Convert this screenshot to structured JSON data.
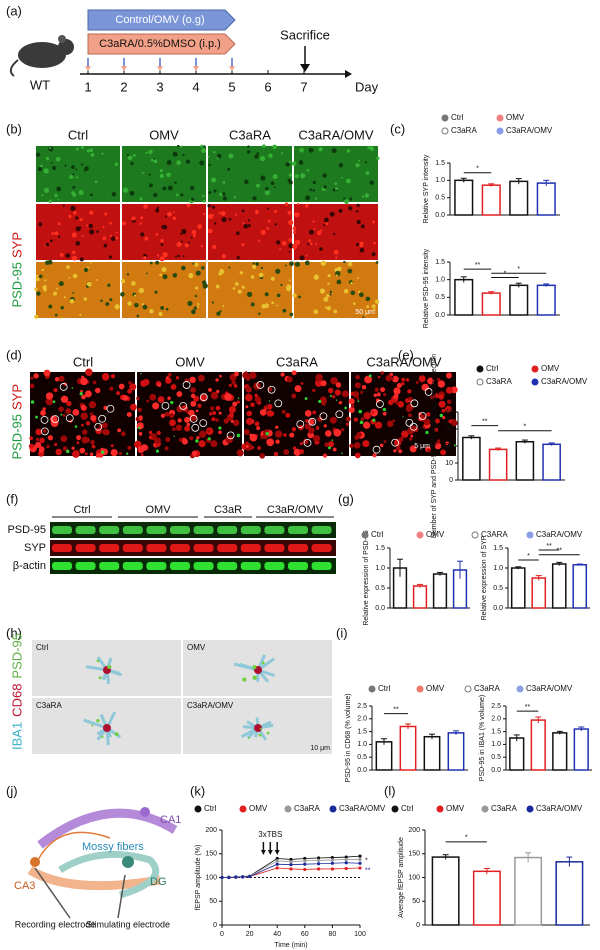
{
  "panels": {
    "a": "(a)",
    "b": "(b)",
    "c": "(c)",
    "d": "(d)",
    "e": "(e)",
    "f": "(f)",
    "g": "(g)",
    "h": "(h)",
    "i": "(i)",
    "j": "(j)",
    "k": "(k)",
    "l": "(l)"
  },
  "timeline": {
    "treatment_1": "Control/OMV (o.g)",
    "treatment_2": "C3aRA/0.5%DMSO (i.p.)",
    "sacrifice": "Sacrifice",
    "mouse": "WT",
    "days": [
      "1",
      "2",
      "3",
      "4",
      "5",
      "6",
      "7"
    ],
    "axis": "Day"
  },
  "panel_b": {
    "columns": [
      "Ctrl",
      "OMV",
      "C3aRA",
      "C3aRA/OMV"
    ],
    "row_label": [
      "PSD-95",
      "SYP"
    ],
    "scale": "50 μm"
  },
  "panel_d": {
    "columns": [
      "Ctrl",
      "OMV",
      "C3aRA",
      "C3aRA/OMV"
    ],
    "row_label": [
      "PSD-95",
      "SYP"
    ],
    "scale": "5 μm"
  },
  "panel_f": {
    "lanes": [
      "Ctrl",
      "OMV",
      "C3aR",
      "C3aR/OMV"
    ],
    "rows": [
      "PSD-95",
      "SYP",
      "β-actin"
    ]
  },
  "panel_h": {
    "cells": [
      "Ctrl",
      "OMV",
      "C3aRA",
      "C3aRA/OMV"
    ],
    "side_label": [
      "IBA1",
      "CD68",
      "PSD-95"
    ],
    "scale": "10 μm"
  },
  "panel_j": {
    "labels": [
      "CA1",
      "CA3",
      "DG",
      "Mossy fibers",
      "Recording electrode",
      "Stimulating electrode"
    ]
  },
  "chart_data": [
    {
      "type": "bar",
      "y_label": "Relative SYP intensity",
      "ylim": [
        0,
        1.5
      ],
      "yticks": [
        {
          "value": 0,
          "label": "0.0"
        },
        {
          "value": 0.5,
          "label": "0.5"
        },
        {
          "value": 1,
          "label": "1.0"
        },
        {
          "value": 1.5,
          "label": "1.5"
        }
      ],
      "annotations": [
        "*"
      ],
      "series": [
        {
          "name": "Ctrl",
          "color": "#111111",
          "dot_color": "#777777",
          "values": [
            1.0
          ],
          "errors": [
            0.06
          ]
        },
        {
          "name": "OMV",
          "color": "#e02020",
          "dot_color": "#f08080",
          "values": [
            0.86
          ],
          "errors": [
            0.04
          ]
        },
        {
          "name": "C3aRA",
          "color": "#111111",
          "dot_color": "#777777",
          "open": true,
          "values": [
            0.97
          ],
          "errors": [
            0.08
          ]
        },
        {
          "name": "C3aRA/OMV",
          "color": "#2030b0",
          "dot_color": "#8a9be8",
          "values": [
            0.92
          ],
          "errors": [
            0.08
          ]
        }
      ]
    },
    {
      "type": "bar",
      "y_label": "Relative PSD-95 intensity",
      "ylim": [
        0,
        1.5
      ],
      "yticks": [
        {
          "value": 0,
          "label": "0.0"
        },
        {
          "value": 0.5,
          "label": "0.5"
        },
        {
          "value": 1,
          "label": "1.0"
        },
        {
          "value": 1.5,
          "label": "1.5"
        }
      ],
      "annotations": [
        "**",
        "*",
        "*"
      ],
      "series": [
        {
          "color": "#111111",
          "values": [
            1.0
          ],
          "errors": [
            0.08
          ]
        },
        {
          "color": "#e02020",
          "values": [
            0.62
          ],
          "errors": [
            0.04
          ]
        },
        {
          "color": "#111111",
          "values": [
            0.84
          ],
          "errors": [
            0.06
          ]
        },
        {
          "color": "#2030b0",
          "values": [
            0.84
          ],
          "errors": [
            0.04
          ]
        }
      ]
    },
    {
      "type": "bar",
      "y_label": "Number of SYP and PSD-95 colocalized puncta per section",
      "ylim": [
        0,
        40
      ],
      "yticks": [
        0,
        10,
        20,
        30,
        40
      ],
      "annotations": [
        "**",
        "*"
      ],
      "series": [
        {
          "name": "Ctrl",
          "color": "#111111",
          "dot_color": "#111111",
          "values": [
            25
          ],
          "errors": [
            1
          ]
        },
        {
          "name": "OMV",
          "color": "#e02020",
          "dot_color": "#e02020",
          "values": [
            18
          ],
          "errors": [
            0.8
          ]
        },
        {
          "name": "C3aRA",
          "color": "#111111",
          "dot_color": "#777777",
          "open": true,
          "values": [
            22.5
          ],
          "errors": [
            1
          ]
        },
        {
          "name": "C3aRA/OMV",
          "color": "#2030b0",
          "dot_color": "#2030b0",
          "values": [
            21
          ],
          "errors": [
            0.8
          ]
        }
      ]
    },
    {
      "type": "bar",
      "y_label": "Relative expression of PSD-95",
      "ylim": [
        0,
        1.5
      ],
      "yticks": [
        {
          "value": 0,
          "label": "0.0"
        },
        {
          "value": 0.5,
          "label": "0.5"
        },
        {
          "value": 1,
          "label": "1.0"
        },
        {
          "value": 1.5,
          "label": "1.5"
        }
      ],
      "annotations": [],
      "series": [
        {
          "name": "Ctrl",
          "color": "#111111",
          "dot_color": "#777777",
          "values": [
            1.0
          ],
          "errors": [
            0.22
          ]
        },
        {
          "name": "OMV",
          "color": "#e02020",
          "dot_color": "#f08080",
          "values": [
            0.55
          ],
          "errors": [
            0.04
          ]
        },
        {
          "name": "C3ARA",
          "color": "#111111",
          "dot_color": "#777777",
          "open": true,
          "values": [
            0.85
          ],
          "errors": [
            0.04
          ]
        },
        {
          "name": "C3aRA/OMV",
          "color": "#2030b0",
          "dot_color": "#8a9be8",
          "values": [
            0.95
          ],
          "errors": [
            0.22
          ]
        }
      ]
    },
    {
      "type": "bar",
      "y_label": "Relative expression of SYP",
      "ylim": [
        0,
        1.5
      ],
      "yticks": [
        {
          "value": 0,
          "label": "0.0"
        },
        {
          "value": 0.5,
          "label": "0.5"
        },
        {
          "value": 1,
          "label": "1.0"
        },
        {
          "value": 1.5,
          "label": "1.5"
        }
      ],
      "annotations": [
        "*",
        "**",
        "**"
      ],
      "series": [
        {
          "color": "#111111",
          "values": [
            1.0
          ],
          "errors": [
            0.03
          ]
        },
        {
          "color": "#e02020",
          "values": [
            0.75
          ],
          "errors": [
            0.06
          ]
        },
        {
          "color": "#111111",
          "values": [
            1.1
          ],
          "errors": [
            0.04
          ]
        },
        {
          "color": "#2030b0",
          "values": [
            1.08
          ],
          "errors": [
            0.02
          ]
        }
      ]
    },
    {
      "type": "bar",
      "y_label": "PSD-95 in CD68 (% volume)",
      "ylim": [
        0,
        2.5
      ],
      "yticks": [
        {
          "value": 0,
          "label": "0.0"
        },
        {
          "value": 0.5,
          "label": "0.5"
        },
        {
          "value": 1,
          "label": "1.0"
        },
        {
          "value": 1.5,
          "label": "1.5"
        },
        {
          "value": 2,
          "label": "2.0"
        },
        {
          "value": 2.5,
          "label": "2.5"
        }
      ],
      "annotations": [
        "**"
      ],
      "series": [
        {
          "name": "Ctrl",
          "color": "#111111",
          "dot_color": "#777777",
          "values": [
            1.1
          ],
          "errors": [
            0.12
          ]
        },
        {
          "name": "OMV",
          "color": "#e02020",
          "dot_color": "#f07a6a",
          "values": [
            1.7
          ],
          "errors": [
            0.1
          ]
        },
        {
          "name": "C3aRA",
          "color": "#111111",
          "dot_color": "#777777",
          "open": true,
          "values": [
            1.3
          ],
          "errors": [
            0.1
          ]
        },
        {
          "name": "C3aRA/OMV",
          "color": "#2030b0",
          "dot_color": "#8ea0e0",
          "values": [
            1.45
          ],
          "errors": [
            0.08
          ]
        }
      ]
    },
    {
      "type": "bar",
      "y_label": "PSD-95 in IBA1 (% volume)",
      "ylim": [
        0,
        2.5
      ],
      "yticks": [
        {
          "value": 0,
          "label": "0.0"
        },
        {
          "value": 0.5,
          "label": "0.5"
        },
        {
          "value": 1,
          "label": "1.0"
        },
        {
          "value": 1.5,
          "label": "1.5"
        },
        {
          "value": 2,
          "label": "2.0"
        },
        {
          "value": 2.5,
          "label": "2.5"
        }
      ],
      "annotations": [
        "**"
      ],
      "series": [
        {
          "color": "#111111",
          "values": [
            1.25
          ],
          "errors": [
            0.12
          ]
        },
        {
          "color": "#e02020",
          "values": [
            1.95
          ],
          "errors": [
            0.12
          ]
        },
        {
          "color": "#111111",
          "values": [
            1.45
          ],
          "errors": [
            0.06
          ]
        },
        {
          "color": "#2030b0",
          "values": [
            1.6
          ],
          "errors": [
            0.08
          ]
        }
      ]
    },
    {
      "type": "line",
      "y_label": "fEPSP amplitude (%)",
      "x_label": "Time (min)",
      "annotation": "3xTBS",
      "significance": [
        "*",
        "**"
      ],
      "xlim": [
        0,
        100
      ],
      "xticks": [
        0,
        20,
        40,
        60,
        80,
        100
      ],
      "ylim": [
        0,
        200
      ],
      "yticks": [
        0,
        50,
        100,
        150,
        200
      ],
      "x": [
        0,
        5,
        10,
        15,
        20,
        40,
        50,
        60,
        70,
        80,
        90,
        100
      ],
      "series": [
        {
          "name": "Ctrl",
          "color": "#111111",
          "values": [
            100,
            100,
            101,
            102,
            103,
            140,
            138,
            140,
            141,
            142,
            143,
            145
          ]
        },
        {
          "name": "OMV",
          "color": "#e02020",
          "values": [
            100,
            100,
            100,
            101,
            102,
            120,
            118,
            117,
            118,
            118,
            119,
            120
          ]
        },
        {
          "name": "C3aRA",
          "color": "#999999",
          "values": [
            100,
            101,
            100,
            102,
            103,
            135,
            133,
            135,
            136,
            137,
            138,
            138
          ]
        },
        {
          "name": "C3aRA/OMV",
          "color": "#1a2a9a",
          "values": [
            100,
            100,
            101,
            101,
            102,
            128,
            127,
            128,
            129,
            130,
            131,
            130
          ]
        }
      ]
    },
    {
      "type": "bar",
      "y_label": "Average fEPSP amplitude",
      "ylim": [
        0,
        200
      ],
      "yticks": [
        0,
        50,
        100,
        150,
        200
      ],
      "annotations": [
        "*"
      ],
      "series": [
        {
          "name": "Ctrl",
          "color": "#111111",
          "dot_color": "#111111",
          "values": [
            143
          ],
          "errors": [
            5
          ]
        },
        {
          "name": "OMV",
          "color": "#e02020",
          "dot_color": "#e02020",
          "values": [
            113
          ],
          "errors": [
            6
          ]
        },
        {
          "name": "C3aRA",
          "color": "#999999",
          "dot_color": "#999999",
          "values": [
            142
          ],
          "errors": [
            10
          ]
        },
        {
          "name": "C3aRA/OMV",
          "color": "#1a2a9a",
          "dot_color": "#1a2a9a",
          "values": [
            133
          ],
          "errors": [
            10
          ]
        }
      ]
    }
  ]
}
